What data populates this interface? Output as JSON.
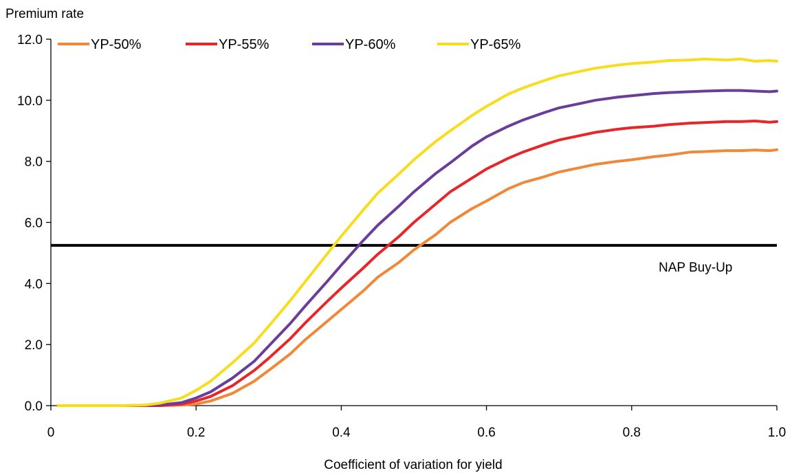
{
  "chart_data": {
    "type": "line",
    "ylabel": "Premium rate",
    "xlabel": "Coefficient of variation for yield",
    "xlim": [
      0,
      1.0
    ],
    "ylim": [
      0,
      12.0
    ],
    "x_ticks": [
      "0",
      "0.2",
      "0.4",
      "0.6",
      "0.8",
      "1.0"
    ],
    "y_ticks": [
      "0.0",
      "2.0",
      "4.0",
      "6.0",
      "8.0",
      "10.0",
      "12.0"
    ],
    "grid": false,
    "legend_position": "top",
    "series": [
      {
        "name": "YP-50%",
        "color": "#f0883a",
        "points": [
          [
            0.01,
            0.0
          ],
          [
            0.05,
            0.0
          ],
          [
            0.1,
            0.0
          ],
          [
            0.15,
            0.0
          ],
          [
            0.18,
            0.02
          ],
          [
            0.2,
            0.05
          ],
          [
            0.22,
            0.15
          ],
          [
            0.25,
            0.4
          ],
          [
            0.28,
            0.8
          ],
          [
            0.3,
            1.15
          ],
          [
            0.33,
            1.7
          ],
          [
            0.35,
            2.15
          ],
          [
            0.38,
            2.75
          ],
          [
            0.4,
            3.15
          ],
          [
            0.43,
            3.75
          ],
          [
            0.45,
            4.2
          ],
          [
            0.48,
            4.7
          ],
          [
            0.5,
            5.1
          ],
          [
            0.53,
            5.6
          ],
          [
            0.55,
            6.0
          ],
          [
            0.58,
            6.45
          ],
          [
            0.6,
            6.7
          ],
          [
            0.63,
            7.1
          ],
          [
            0.65,
            7.3
          ],
          [
            0.68,
            7.5
          ],
          [
            0.7,
            7.65
          ],
          [
            0.73,
            7.8
          ],
          [
            0.75,
            7.9
          ],
          [
            0.78,
            8.0
          ],
          [
            0.8,
            8.05
          ],
          [
            0.83,
            8.15
          ],
          [
            0.85,
            8.2
          ],
          [
            0.88,
            8.3
          ],
          [
            0.9,
            8.32
          ],
          [
            0.93,
            8.35
          ],
          [
            0.95,
            8.35
          ],
          [
            0.97,
            8.37
          ],
          [
            0.99,
            8.35
          ],
          [
            1.0,
            8.38
          ]
        ]
      },
      {
        "name": "YP-55%",
        "color": "#e8262a",
        "points": [
          [
            0.01,
            0.0
          ],
          [
            0.05,
            0.0
          ],
          [
            0.1,
            0.0
          ],
          [
            0.15,
            0.0
          ],
          [
            0.18,
            0.05
          ],
          [
            0.2,
            0.15
          ],
          [
            0.22,
            0.3
          ],
          [
            0.25,
            0.65
          ],
          [
            0.28,
            1.15
          ],
          [
            0.3,
            1.55
          ],
          [
            0.33,
            2.2
          ],
          [
            0.35,
            2.7
          ],
          [
            0.38,
            3.4
          ],
          [
            0.4,
            3.85
          ],
          [
            0.43,
            4.5
          ],
          [
            0.45,
            4.95
          ],
          [
            0.48,
            5.55
          ],
          [
            0.5,
            6.0
          ],
          [
            0.53,
            6.6
          ],
          [
            0.55,
            7.0
          ],
          [
            0.58,
            7.45
          ],
          [
            0.6,
            7.75
          ],
          [
            0.63,
            8.1
          ],
          [
            0.65,
            8.3
          ],
          [
            0.68,
            8.55
          ],
          [
            0.7,
            8.7
          ],
          [
            0.73,
            8.85
          ],
          [
            0.75,
            8.95
          ],
          [
            0.78,
            9.05
          ],
          [
            0.8,
            9.1
          ],
          [
            0.83,
            9.15
          ],
          [
            0.85,
            9.2
          ],
          [
            0.88,
            9.25
          ],
          [
            0.9,
            9.27
          ],
          [
            0.93,
            9.3
          ],
          [
            0.95,
            9.3
          ],
          [
            0.97,
            9.32
          ],
          [
            0.99,
            9.28
          ],
          [
            1.0,
            9.3
          ]
        ]
      },
      {
        "name": "YP-60%",
        "color": "#6a3d9a",
        "points": [
          [
            0.01,
            0.0
          ],
          [
            0.05,
            0.0
          ],
          [
            0.1,
            0.0
          ],
          [
            0.15,
            0.02
          ],
          [
            0.18,
            0.1
          ],
          [
            0.2,
            0.25
          ],
          [
            0.22,
            0.45
          ],
          [
            0.25,
            0.9
          ],
          [
            0.28,
            1.45
          ],
          [
            0.3,
            1.95
          ],
          [
            0.33,
            2.7
          ],
          [
            0.35,
            3.25
          ],
          [
            0.38,
            4.05
          ],
          [
            0.4,
            4.6
          ],
          [
            0.43,
            5.4
          ],
          [
            0.45,
            5.9
          ],
          [
            0.48,
            6.55
          ],
          [
            0.5,
            7.0
          ],
          [
            0.53,
            7.6
          ],
          [
            0.55,
            7.95
          ],
          [
            0.58,
            8.5
          ],
          [
            0.6,
            8.8
          ],
          [
            0.63,
            9.15
          ],
          [
            0.65,
            9.35
          ],
          [
            0.68,
            9.6
          ],
          [
            0.7,
            9.75
          ],
          [
            0.73,
            9.9
          ],
          [
            0.75,
            10.0
          ],
          [
            0.78,
            10.1
          ],
          [
            0.8,
            10.15
          ],
          [
            0.83,
            10.22
          ],
          [
            0.85,
            10.25
          ],
          [
            0.88,
            10.28
          ],
          [
            0.9,
            10.3
          ],
          [
            0.93,
            10.32
          ],
          [
            0.95,
            10.32
          ],
          [
            0.97,
            10.3
          ],
          [
            0.99,
            10.28
          ],
          [
            1.0,
            10.3
          ]
        ]
      },
      {
        "name": "YP-65%",
        "color": "#f8dc1e",
        "points": [
          [
            0.01,
            0.0
          ],
          [
            0.05,
            0.0
          ],
          [
            0.1,
            0.0
          ],
          [
            0.13,
            0.02
          ],
          [
            0.15,
            0.08
          ],
          [
            0.18,
            0.25
          ],
          [
            0.2,
            0.5
          ],
          [
            0.22,
            0.8
          ],
          [
            0.25,
            1.4
          ],
          [
            0.28,
            2.05
          ],
          [
            0.3,
            2.6
          ],
          [
            0.33,
            3.45
          ],
          [
            0.35,
            4.05
          ],
          [
            0.38,
            4.95
          ],
          [
            0.4,
            5.55
          ],
          [
            0.43,
            6.4
          ],
          [
            0.45,
            6.95
          ],
          [
            0.48,
            7.6
          ],
          [
            0.5,
            8.05
          ],
          [
            0.53,
            8.65
          ],
          [
            0.55,
            9.0
          ],
          [
            0.58,
            9.5
          ],
          [
            0.6,
            9.8
          ],
          [
            0.63,
            10.2
          ],
          [
            0.65,
            10.4
          ],
          [
            0.68,
            10.65
          ],
          [
            0.7,
            10.8
          ],
          [
            0.73,
            10.95
          ],
          [
            0.75,
            11.05
          ],
          [
            0.78,
            11.15
          ],
          [
            0.8,
            11.2
          ],
          [
            0.83,
            11.25
          ],
          [
            0.85,
            11.3
          ],
          [
            0.88,
            11.32
          ],
          [
            0.9,
            11.35
          ],
          [
            0.93,
            11.32
          ],
          [
            0.95,
            11.35
          ],
          [
            0.97,
            11.28
          ],
          [
            0.99,
            11.3
          ],
          [
            1.0,
            11.28
          ]
        ]
      }
    ],
    "reference_line": {
      "y": 5.25,
      "label": "NAP Buy-Up",
      "color": "#000000"
    }
  }
}
